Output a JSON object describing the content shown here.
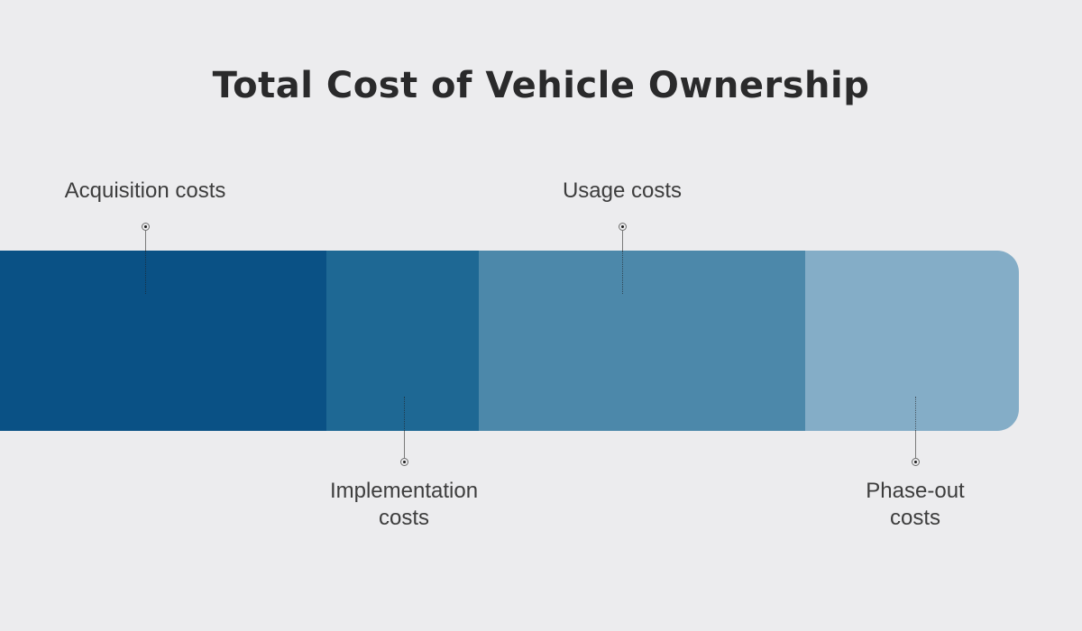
{
  "title": "Total Cost of Vehicle Ownership",
  "background_color": "#ECECEE",
  "title_color": "#2A2A2B",
  "label_color": "#3D3D3D",
  "chart_data": {
    "type": "bar",
    "variant": "horizontal-stacked-proportional",
    "title": "Total Cost of Vehicle Ownership",
    "xlabel": "",
    "ylabel": "",
    "axes_shown": false,
    "legend": "none",
    "labels_connected_by": "callout-lines-with-dot-markers",
    "categories": [
      "Acquisition costs",
      "Implementation costs",
      "Usage costs",
      "Phase-out costs"
    ],
    "values_share_pct": [
      32,
      15,
      32,
      21
    ],
    "segments": [
      {
        "label": "Acquisition costs",
        "share_pct": 32,
        "color": "#0A5185",
        "texture": "lighter-dots",
        "label_position": "above"
      },
      {
        "label": "Implementation costs",
        "share_pct": 15,
        "color": "#1E6894",
        "texture": "none",
        "label_position": "below"
      },
      {
        "label": "Usage costs",
        "share_pct": 32,
        "color": "#4C88AA",
        "texture": "none",
        "label_position": "above"
      },
      {
        "label": "Phase-out costs",
        "share_pct": 21,
        "color": "#84ADC7",
        "texture": "darker-dots",
        "label_position": "below"
      }
    ]
  }
}
